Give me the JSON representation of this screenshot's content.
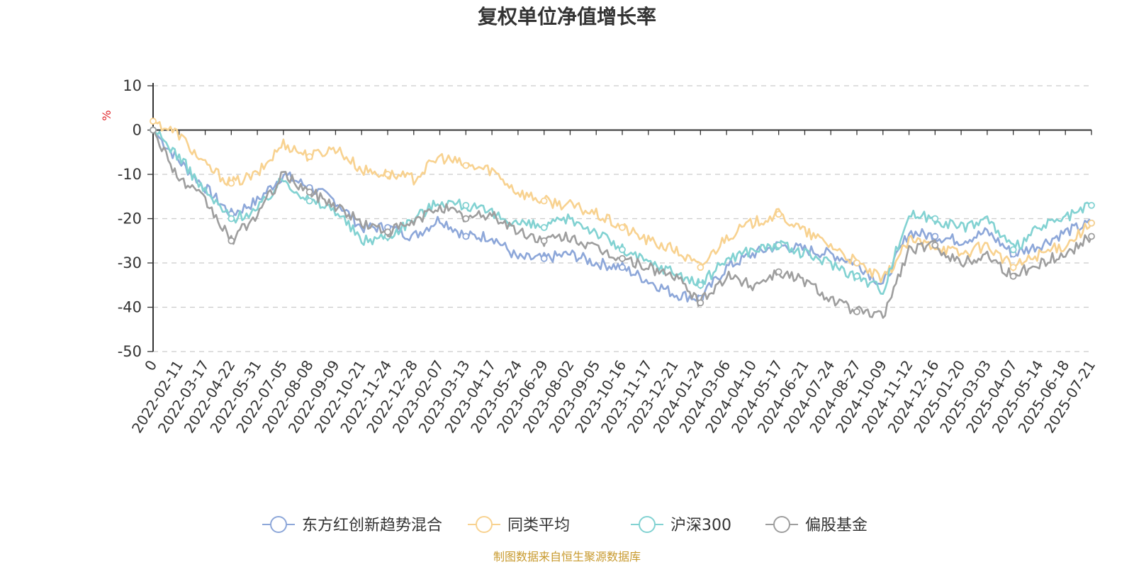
{
  "chart_data": {
    "type": "line",
    "title": "复权单位净值增长率",
    "ylabel": "%",
    "ylim": [
      -50,
      10
    ],
    "yticks": [
      "10",
      "0",
      "-10",
      "-20",
      "-30",
      "-40",
      "-50"
    ],
    "grid": true,
    "legend_position": "bottom-center",
    "source": "制图数据来自恒生聚源数据库",
    "categories": [
      "0",
      "2022-02-11",
      "2022-03-17",
      "2022-04-22",
      "2022-05-31",
      "2022-07-05",
      "2022-08-08",
      "2022-09-09",
      "2022-10-21",
      "2022-11-24",
      "2022-12-28",
      "2023-02-07",
      "2023-03-13",
      "2023-04-17",
      "2023-05-24",
      "2023-06-29",
      "2023-08-02",
      "2023-09-05",
      "2023-10-16",
      "2023-11-17",
      "2023-12-21",
      "2024-01-24",
      "2024-03-06",
      "2024-04-10",
      "2024-05-17",
      "2024-06-21",
      "2024-07-24",
      "2024-08-27",
      "2024-10-09",
      "2024-11-12",
      "2024-12-16",
      "2025-01-20",
      "2025-03-03",
      "2025-04-07",
      "2025-05-14",
      "2025-06-18",
      "2025-07-21"
    ],
    "series": [
      {
        "name": "东方红创新趋势混合",
        "color": "#8da7d9",
        "values": [
          0,
          -7,
          -13,
          -19,
          -16,
          -10,
          -13,
          -16,
          -22,
          -22,
          -24,
          -20,
          -24,
          -24,
          -29,
          -29,
          -28,
          -30,
          -31,
          -34,
          -37,
          -38,
          -31,
          -28,
          -26,
          -27,
          -28,
          -30,
          -35,
          -23,
          -24,
          -25,
          -23,
          -28,
          -26,
          -23,
          -21
        ]
      },
      {
        "name": "同类平均",
        "color": "#f8d290",
        "values": [
          2,
          -1,
          -8,
          -12,
          -10,
          -3,
          -6,
          -4,
          -9,
          -10,
          -11,
          -6,
          -8,
          -9,
          -14,
          -16,
          -17,
          -19,
          -22,
          -25,
          -27,
          -31,
          -24,
          -21,
          -19,
          -23,
          -26,
          -30,
          -34,
          -25,
          -26,
          -28,
          -26,
          -31,
          -28,
          -26,
          -21
        ]
      },
      {
        "name": "沪深300",
        "color": "#82d2d2",
        "values": [
          0,
          -6,
          -14,
          -20,
          -18,
          -11,
          -16,
          -18,
          -25,
          -24,
          -20,
          -16,
          -17,
          -19,
          -21,
          -22,
          -20,
          -23,
          -27,
          -30,
          -32,
          -35,
          -29,
          -27,
          -26,
          -28,
          -30,
          -33,
          -36,
          -19,
          -20,
          -22,
          -20,
          -27,
          -22,
          -20,
          -17
        ]
      },
      {
        "name": "偏股基金",
        "color": "#9e9e9e",
        "values": [
          0,
          -11,
          -16,
          -25,
          -19,
          -10,
          -14,
          -17,
          -21,
          -23,
          -21,
          -17,
          -20,
          -19,
          -23,
          -25,
          -24,
          -27,
          -29,
          -31,
          -33,
          -39,
          -33,
          -35,
          -32,
          -34,
          -38,
          -41,
          -42,
          -27,
          -26,
          -30,
          -28,
          -33,
          -30,
          -28,
          -24
        ]
      }
    ]
  }
}
